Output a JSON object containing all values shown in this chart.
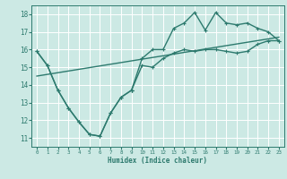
{
  "title": "",
  "xlabel": "Humidex (Indice chaleur)",
  "background_color": "#cce9e4",
  "grid_color": "#ffffff",
  "line_color": "#2d7a6e",
  "xlim": [
    -0.5,
    23.5
  ],
  "ylim": [
    10.5,
    18.5
  ],
  "xticks": [
    0,
    1,
    2,
    3,
    4,
    5,
    6,
    7,
    8,
    9,
    10,
    11,
    12,
    13,
    14,
    15,
    16,
    17,
    18,
    19,
    20,
    21,
    22,
    23
  ],
  "yticks": [
    11,
    12,
    13,
    14,
    15,
    16,
    17,
    18
  ],
  "shared_x": [
    0,
    1,
    2,
    3,
    4,
    5,
    6,
    7,
    8,
    9
  ],
  "shared_y": [
    15.9,
    15.1,
    13.7,
    12.7,
    11.9,
    11.2,
    11.1,
    12.4,
    13.3,
    13.7
  ],
  "line_low_x": [
    9,
    10,
    11,
    12,
    13,
    14,
    15,
    16,
    17,
    18,
    19,
    20,
    21,
    22,
    23
  ],
  "line_low_y": [
    13.7,
    15.1,
    15.0,
    15.5,
    15.8,
    16.0,
    15.9,
    16.0,
    16.0,
    15.9,
    15.8,
    15.9,
    16.3,
    16.5,
    16.5
  ],
  "line_high_x": [
    9,
    10,
    11,
    12,
    13,
    14,
    15,
    16,
    17,
    18,
    19,
    20,
    21,
    22,
    23
  ],
  "line_high_y": [
    13.7,
    15.5,
    16.0,
    16.0,
    17.2,
    17.5,
    18.1,
    17.1,
    18.1,
    17.5,
    17.4,
    17.5,
    17.2,
    17.0,
    16.5
  ],
  "trend_x": [
    0,
    23
  ],
  "trend_y": [
    14.5,
    16.7
  ]
}
